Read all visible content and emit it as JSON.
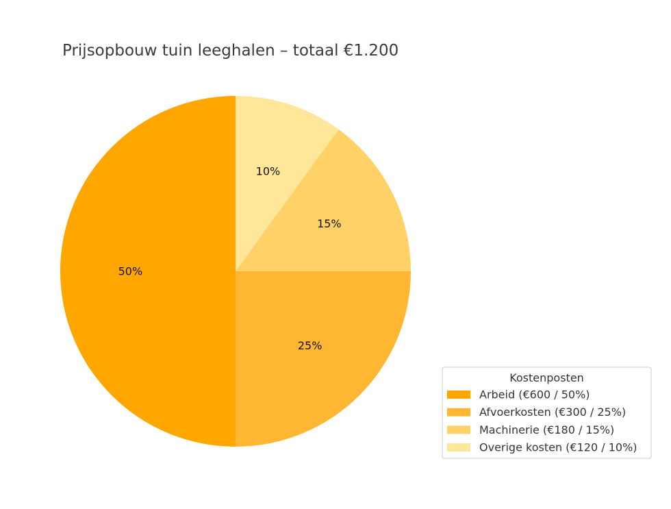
{
  "chart_data": {
    "type": "pie",
    "title": "Prijsopbouw tuin leeghalen – totaal €1.200",
    "start_angle_deg": 90,
    "direction": "clockwise",
    "slices": [
      {
        "name": "Overige kosten",
        "value": 120,
        "percent_label": "10%",
        "color": "#FFE699"
      },
      {
        "name": "Machinerie",
        "value": 180,
        "percent_label": "15%",
        "color": "#FFD166"
      },
      {
        "name": "Afvoerkosten",
        "value": 300,
        "percent_label": "25%",
        "color": "#FFB733"
      },
      {
        "name": "Arbeid",
        "value": 600,
        "percent_label": "50%",
        "color": "#FFA600"
      }
    ],
    "legend": {
      "title": "Kostenposten",
      "placement": "bottom-right",
      "entries": [
        {
          "label": "Arbeid (€600 / 50%)",
          "color": "#FFA600"
        },
        {
          "label": "Afvoerkosten (€300 / 25%)",
          "color": "#FFB733"
        },
        {
          "label": "Machinerie (€180 / 15%)",
          "color": "#FFD166"
        },
        {
          "label": "Overige kosten (€120 / 10%)",
          "color": "#FFE699"
        }
      ]
    }
  }
}
